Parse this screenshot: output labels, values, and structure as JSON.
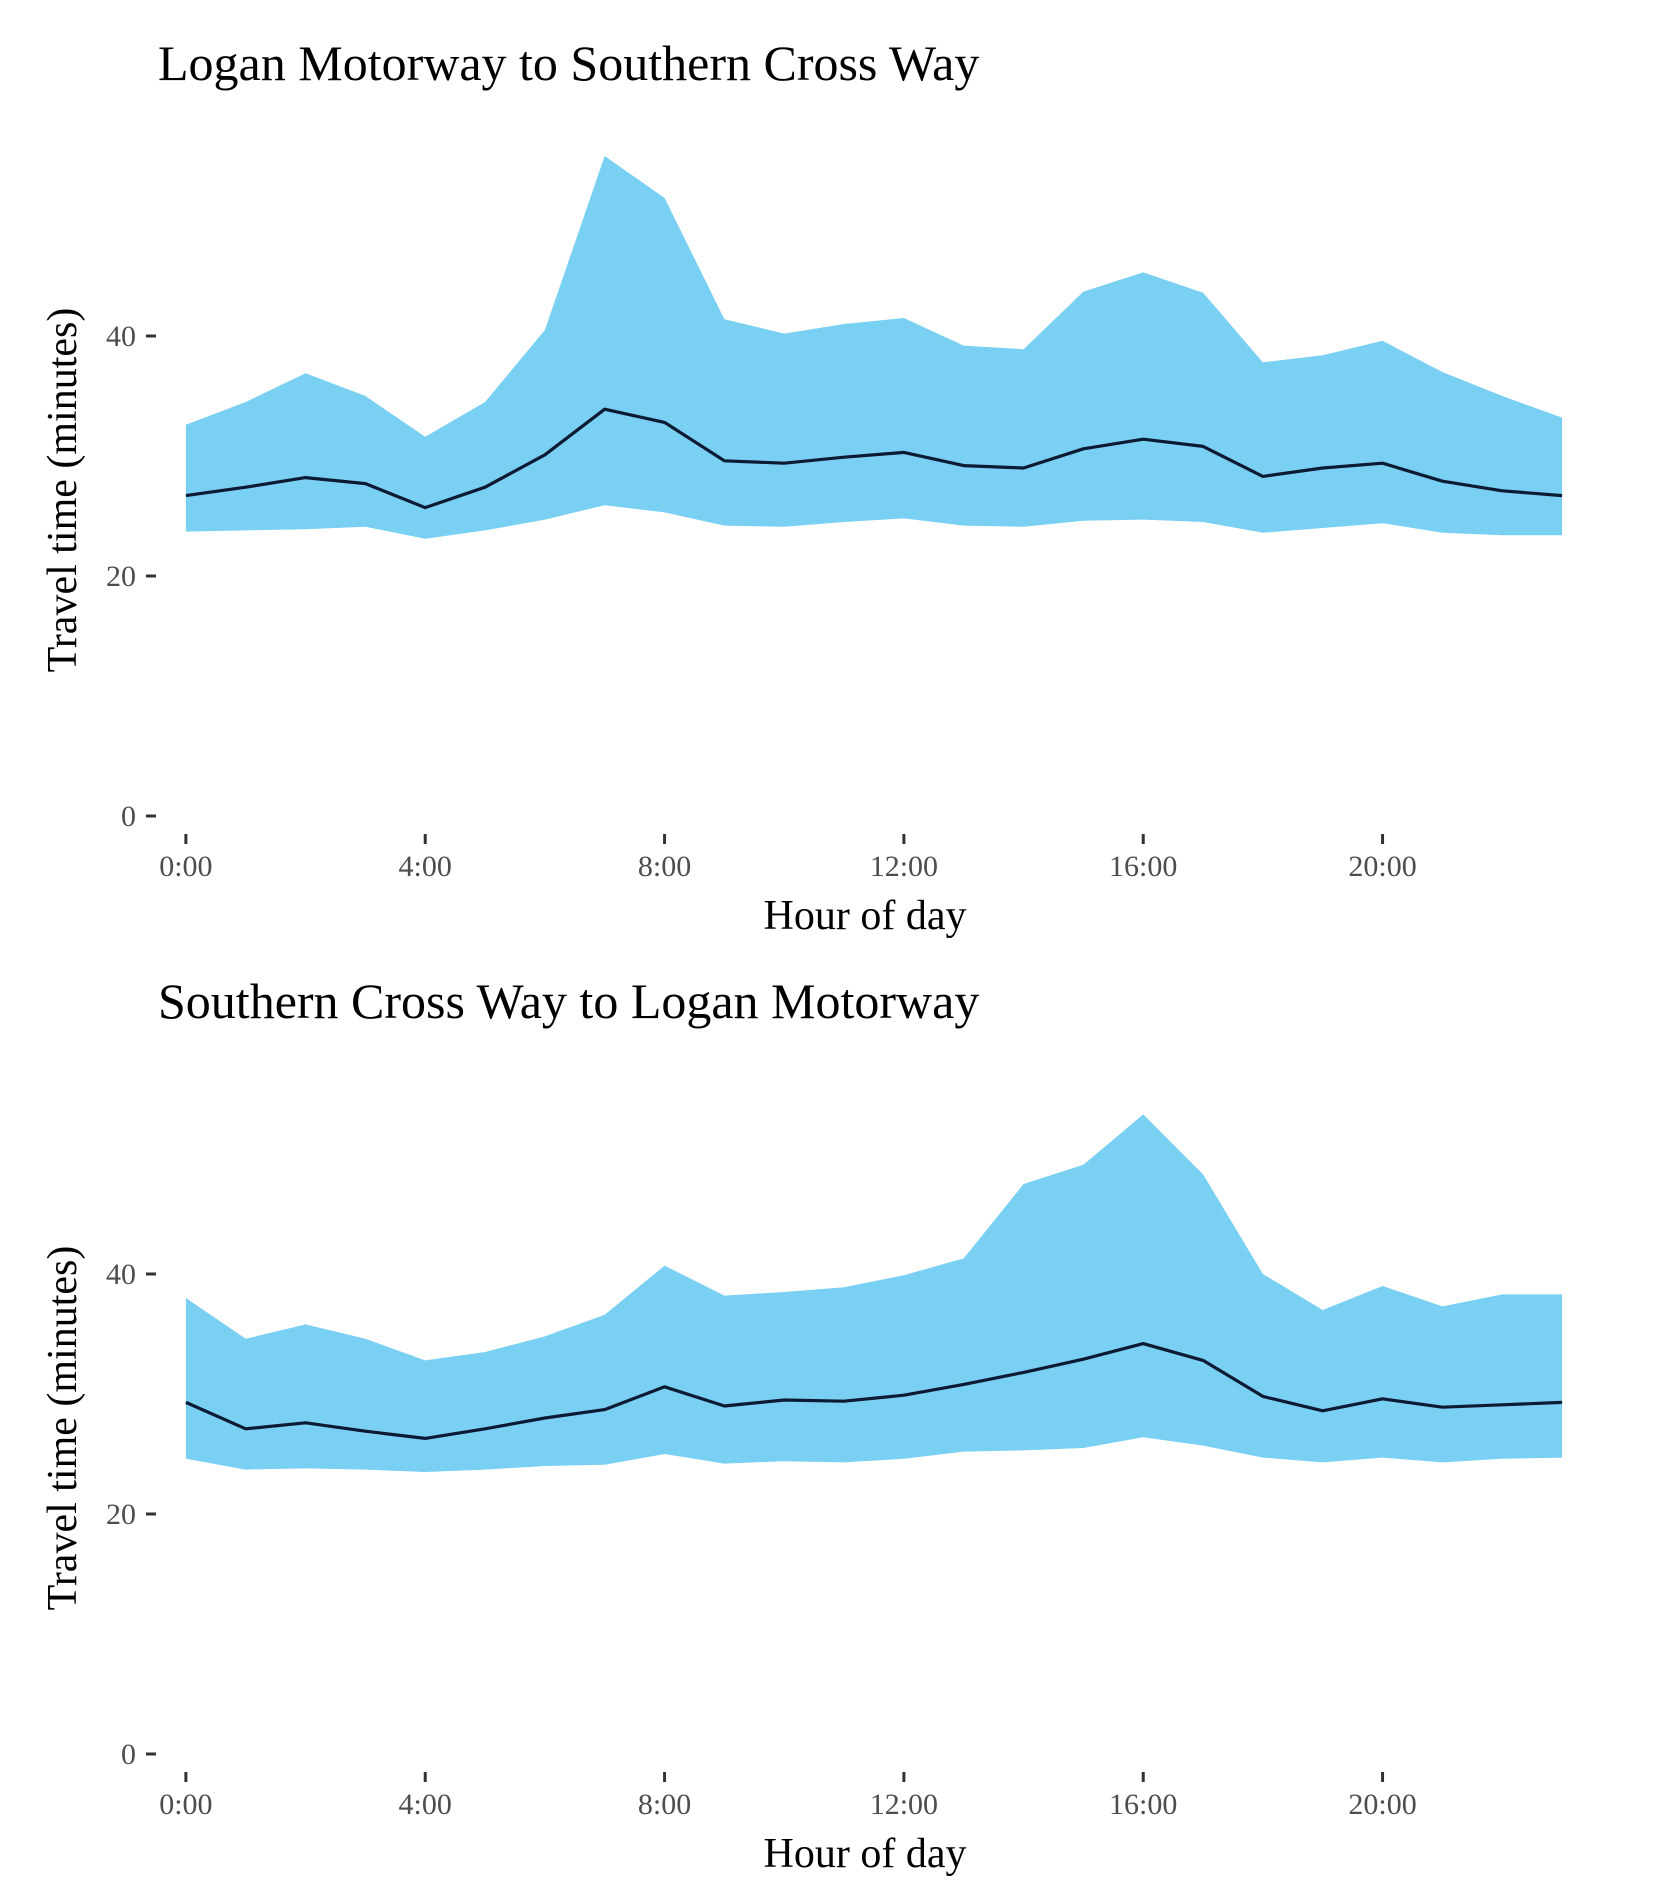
{
  "chart_data": [
    {
      "type": "area",
      "title": "Logan Motorway to Southern Cross Way",
      "xlabel": "Hour of day",
      "ylabel": "Travel time (minutes)",
      "x": [
        0,
        1,
        2,
        3,
        4,
        5,
        6,
        7,
        8,
        9,
        10,
        11,
        12,
        13,
        14,
        15,
        16,
        17,
        18,
        19,
        20,
        21,
        22,
        23
      ],
      "xticks": [
        0,
        4,
        8,
        12,
        16,
        20
      ],
      "xtick_labels": [
        "0:00",
        "4:00",
        "8:00",
        "12:00",
        "16:00",
        "20:00"
      ],
      "yticks": [
        0,
        20,
        40
      ],
      "ytick_labels": [
        "0",
        "20",
        "40"
      ],
      "xlim": [
        -0.6,
        23.3
      ],
      "ylim": [
        -1,
        55.5
      ],
      "band_color": "#7ad0f2",
      "line_color": "#0d1a33",
      "grid": false,
      "series": [
        {
          "role": "upper",
          "values": [
            32.6,
            34.5,
            36.9,
            35.0,
            31.6,
            34.5,
            40.5,
            55.0,
            51.5,
            41.4,
            40.2,
            41.0,
            41.5,
            39.2,
            38.9,
            43.7,
            45.3,
            43.6,
            37.8,
            38.4,
            39.6,
            37.0,
            35.0,
            33.2
          ]
        },
        {
          "role": "median",
          "values": [
            26.7,
            27.4,
            28.2,
            27.7,
            25.7,
            27.4,
            30.1,
            33.9,
            32.8,
            29.6,
            29.4,
            29.9,
            30.3,
            29.2,
            29.0,
            30.6,
            31.4,
            30.8,
            28.3,
            29.0,
            29.4,
            27.9,
            27.1,
            26.7
          ]
        },
        {
          "role": "lower",
          "values": [
            23.7,
            23.8,
            23.9,
            24.1,
            23.1,
            23.8,
            24.7,
            25.9,
            25.3,
            24.2,
            24.1,
            24.5,
            24.8,
            24.2,
            24.1,
            24.6,
            24.7,
            24.5,
            23.6,
            24.0,
            24.4,
            23.6,
            23.4,
            23.4
          ]
        }
      ]
    },
    {
      "type": "area",
      "title": "Southern Cross Way to Logan Motorway",
      "xlabel": "Hour of day",
      "ylabel": "Travel time (minutes)",
      "x": [
        0,
        1,
        2,
        3,
        4,
        5,
        6,
        7,
        8,
        9,
        10,
        11,
        12,
        13,
        14,
        15,
        16,
        17,
        18,
        19,
        20,
        21,
        22,
        23
      ],
      "xticks": [
        0,
        4,
        8,
        12,
        16,
        20
      ],
      "xtick_labels": [
        "0:00",
        "4:00",
        "8:00",
        "12:00",
        "16:00",
        "20:00"
      ],
      "yticks": [
        0,
        20,
        40
      ],
      "ytick_labels": [
        "0",
        "20",
        "40"
      ],
      "xlim": [
        -0.6,
        23.3
      ],
      "ylim": [
        -1,
        55.5
      ],
      "band_color": "#7ad0f2",
      "line_color": "#0d1a33",
      "grid": false,
      "series": [
        {
          "role": "upper",
          "values": [
            38.0,
            34.6,
            35.8,
            34.6,
            32.8,
            33.5,
            34.8,
            36.6,
            40.7,
            38.2,
            38.5,
            38.9,
            39.9,
            41.3,
            47.5,
            49.1,
            53.3,
            48.3,
            40.0,
            37.0,
            39.0,
            37.3,
            38.3,
            38.3
          ]
        },
        {
          "role": "median",
          "values": [
            29.3,
            27.1,
            27.6,
            26.9,
            26.3,
            27.1,
            28.0,
            28.7,
            30.6,
            29.0,
            29.5,
            29.4,
            29.9,
            30.8,
            31.8,
            32.9,
            34.2,
            32.8,
            29.8,
            28.6,
            29.6,
            28.9,
            29.1,
            29.3
          ]
        },
        {
          "role": "lower",
          "values": [
            24.6,
            23.7,
            23.8,
            23.7,
            23.5,
            23.7,
            24.0,
            24.1,
            25.0,
            24.2,
            24.4,
            24.3,
            24.6,
            25.2,
            25.3,
            25.5,
            26.4,
            25.7,
            24.7,
            24.3,
            24.7,
            24.3,
            24.6,
            24.7
          ]
        }
      ]
    }
  ]
}
